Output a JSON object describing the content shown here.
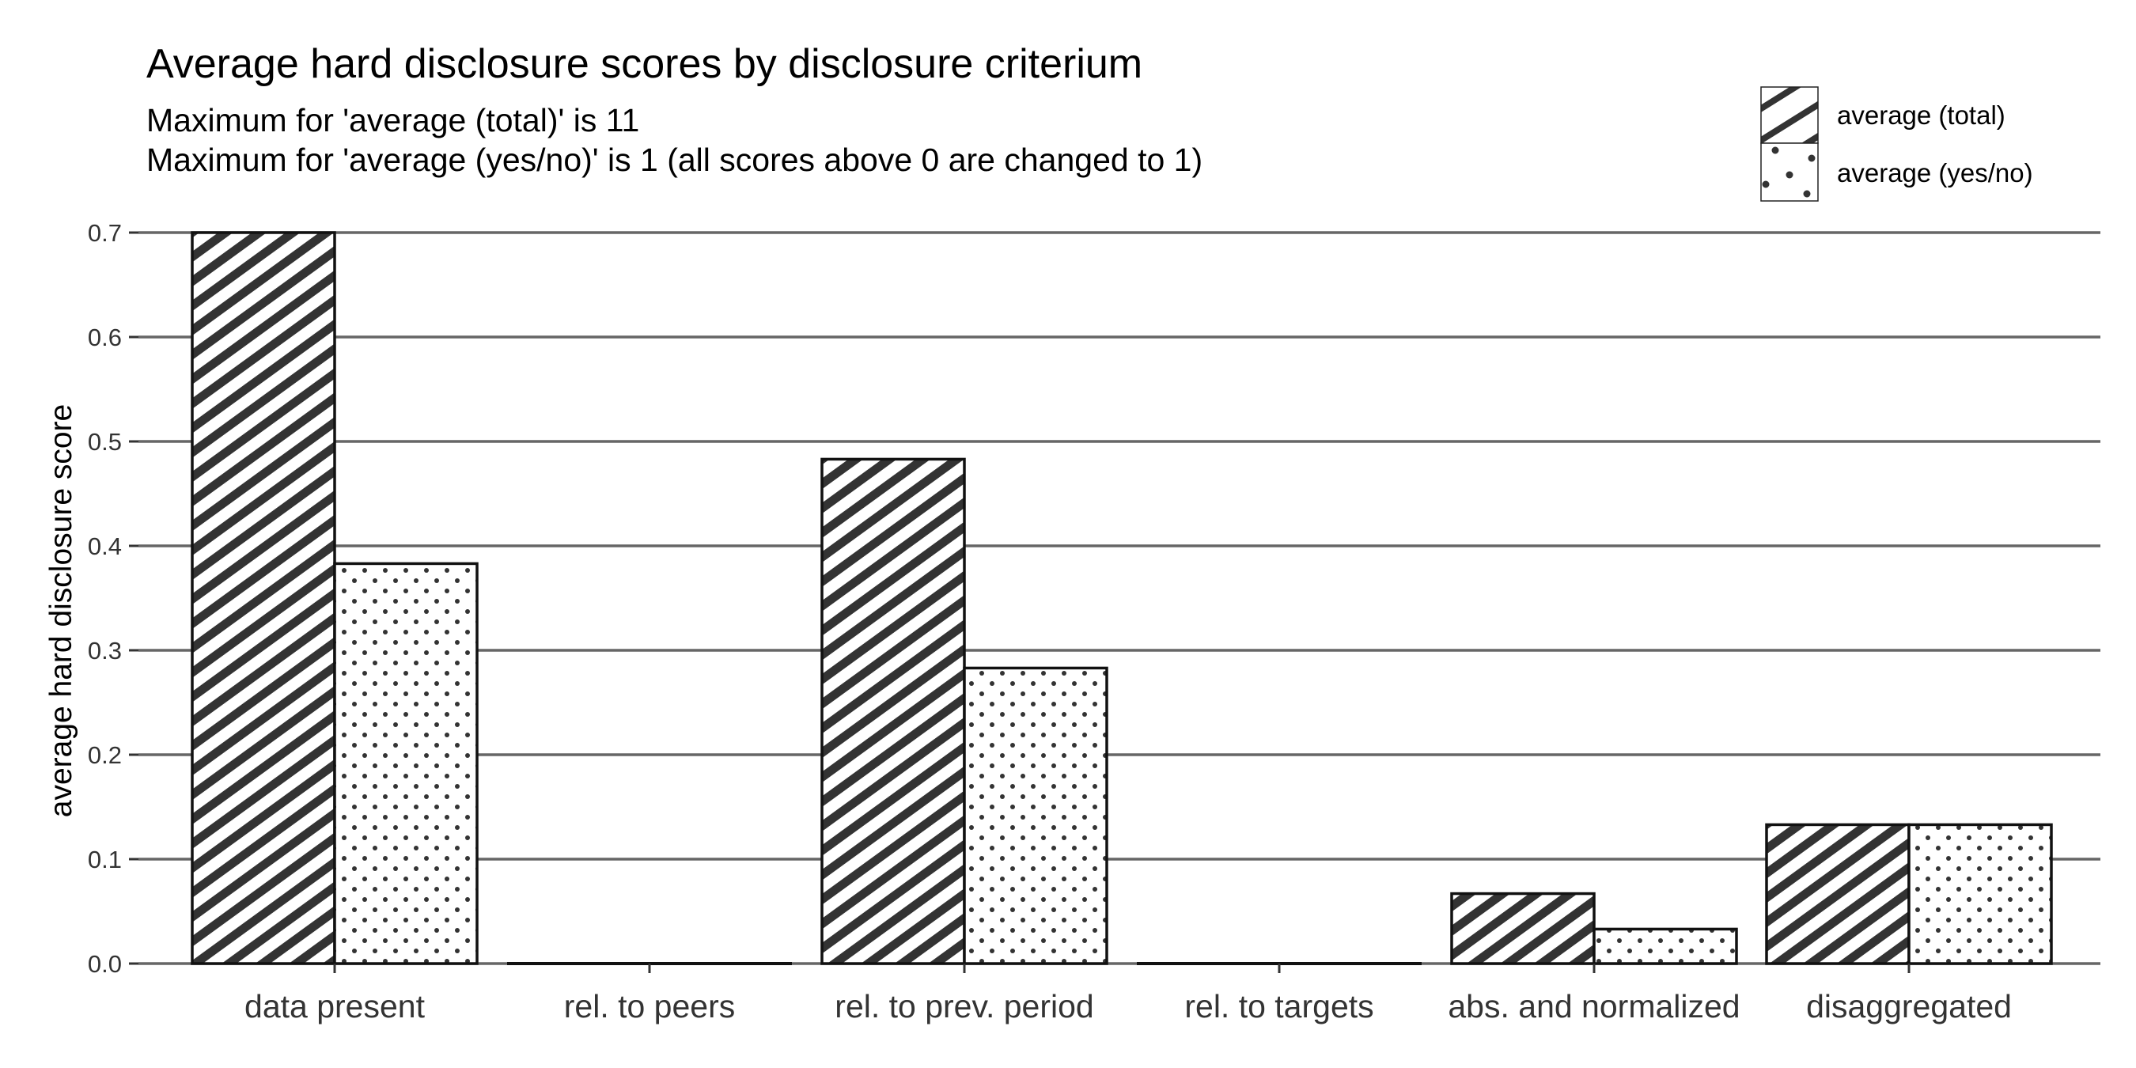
{
  "chart_data": {
    "type": "bar",
    "title": "Average hard disclosure scores by disclosure criterium",
    "subtitle_lines": [
      "Maximum for 'average (total)' is 11",
      "Maximum for 'average (yes/no)' is 1 (all scores above 0 are changed to 1)"
    ],
    "xlabel": "",
    "ylabel": "average hard disclosure score",
    "ylim": [
      0,
      0.7
    ],
    "yticks": [
      "0.0",
      "0.1",
      "0.2",
      "0.3",
      "0.4",
      "0.5",
      "0.6",
      "0.7"
    ],
    "grid": "horizontal",
    "legend_position": "top-right",
    "categories": [
      "data present",
      "rel. to peers",
      "rel. to prev. period",
      "rel. to targets",
      "abs. and normalized",
      "disaggregated"
    ],
    "series": [
      {
        "name": "average (total)",
        "pattern": "diagonal-stripes",
        "values": [
          0.7,
          0.0,
          0.483,
          0.0,
          0.067,
          0.133
        ]
      },
      {
        "name": "average (yes/no)",
        "pattern": "dots",
        "values": [
          0.383,
          0.0,
          0.283,
          0.0,
          0.033,
          0.133
        ]
      }
    ],
    "colors": {
      "grid": "#666666",
      "bar_stroke": "#111111",
      "pattern_ink": "#333333",
      "bar_fill": "#ffffff"
    }
  }
}
